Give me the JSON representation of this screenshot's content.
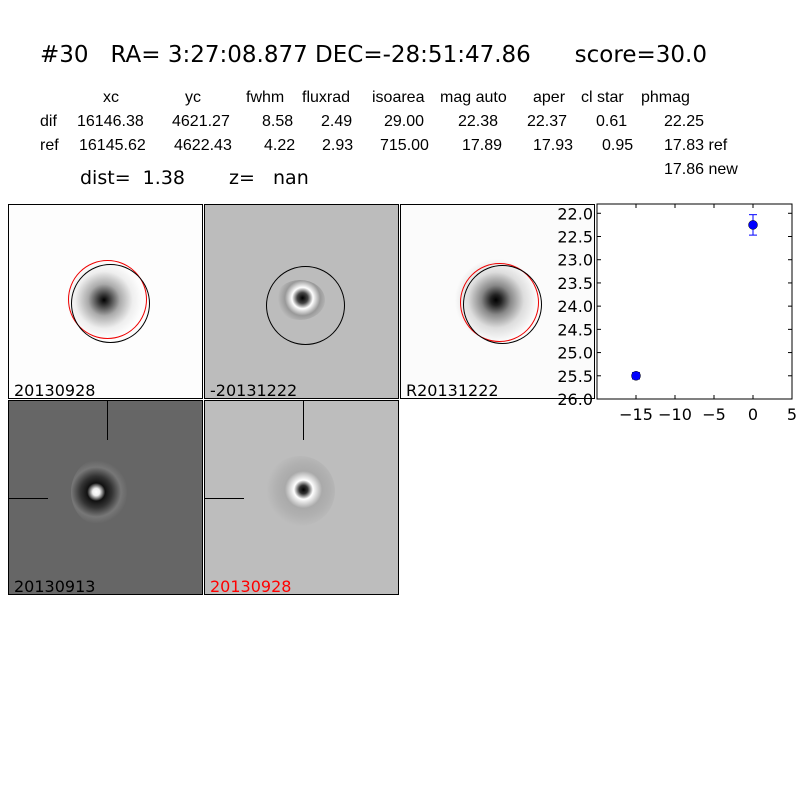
{
  "title": {
    "id": "#30",
    "ra": "RA= 3:27:08.877",
    "dec": "DEC=-28:51:47.86",
    "score": "score=30.0"
  },
  "table": {
    "headers": [
      "xc",
      "yc",
      "fwhm",
      "fluxrad",
      "isoarea",
      "mag auto",
      "aper",
      "cl star",
      "phmag"
    ],
    "rows": [
      {
        "label": "dif",
        "values": [
          "16146.38",
          "4621.27",
          "8.58",
          "2.49",
          "29.00",
          "22.38",
          "22.37",
          "0.61",
          "22.25"
        ]
      },
      {
        "label": "ref",
        "values": [
          "16145.62",
          "4622.43",
          "4.22",
          "2.93",
          "715.00",
          "17.89",
          "17.93",
          "0.95",
          "17.83 ref"
        ]
      }
    ],
    "extra_phmag": "17.86 new",
    "dist": "dist=  1.38",
    "z": "z=   nan"
  },
  "panels": [
    {
      "label": "20130928",
      "label_color": "#000000"
    },
    {
      "label": "-20131222",
      "label_color": "#000000"
    },
    {
      "label": "R20131222",
      "label_color": "#000000"
    },
    {
      "label": "20130913",
      "label_color": "#000000"
    },
    {
      "label": "20130928",
      "label_color": "#ff0000"
    }
  ],
  "chart_data": {
    "type": "scatter",
    "x": [
      -15,
      0
    ],
    "y": [
      25.5,
      22.25
    ],
    "yerr": [
      0.07,
      0.22
    ],
    "xlim": [
      -20,
      5
    ],
    "ylim": [
      26.0,
      21.8
    ],
    "y_inverted": true,
    "xticks": [
      "-15",
      "-10",
      "-5",
      "0",
      "5"
    ],
    "xtick_values": [
      -15,
      -10,
      -5,
      0,
      5
    ],
    "yticks": [
      "22.0",
      "22.5",
      "23.0",
      "23.5",
      "24.0",
      "24.5",
      "25.0",
      "25.5",
      "26.0"
    ],
    "ytick_values": [
      22.0,
      22.5,
      23.0,
      23.5,
      24.0,
      24.5,
      25.0,
      25.5,
      26.0
    ],
    "marker_color": "#0000ff"
  }
}
